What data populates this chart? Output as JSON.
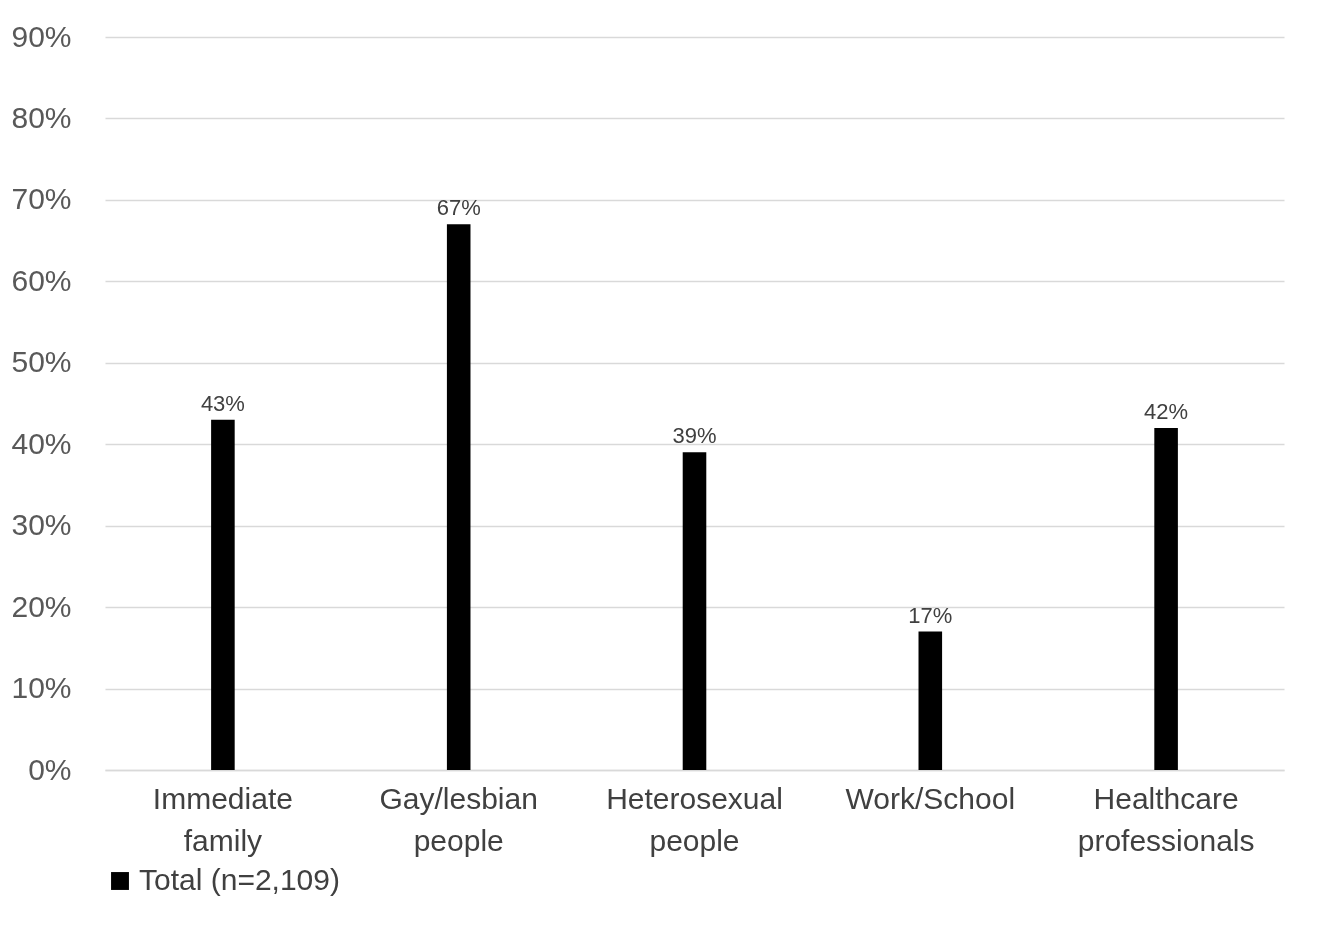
{
  "chart_data": {
    "type": "bar",
    "categories": [
      "Immediate family",
      "Gay/lesbian people",
      "Heterosexual people",
      "Work/School",
      "Healthcare professionals"
    ],
    "series": [
      {
        "name": "Total (n=2,109)",
        "color": "#000000",
        "values": [
          43,
          67,
          39,
          17,
          42
        ],
        "value_labels": [
          "43%",
          "67%",
          "39%",
          "17%",
          "42%"
        ]
      }
    ],
    "ylim": [
      0,
      90
    ],
    "yticks": [
      {
        "value": 0,
        "label": "0%"
      },
      {
        "value": 10,
        "label": "10%"
      },
      {
        "value": 20,
        "label": "20%"
      },
      {
        "value": 30,
        "label": "30%"
      },
      {
        "value": 40,
        "label": "40%"
      },
      {
        "value": 50,
        "label": "50%"
      },
      {
        "value": 60,
        "label": "60%"
      },
      {
        "value": 70,
        "label": "70%"
      },
      {
        "value": 80,
        "label": "80%"
      },
      {
        "value": 90,
        "label": "90%"
      }
    ],
    "grid": "y",
    "legend": "bottom"
  }
}
